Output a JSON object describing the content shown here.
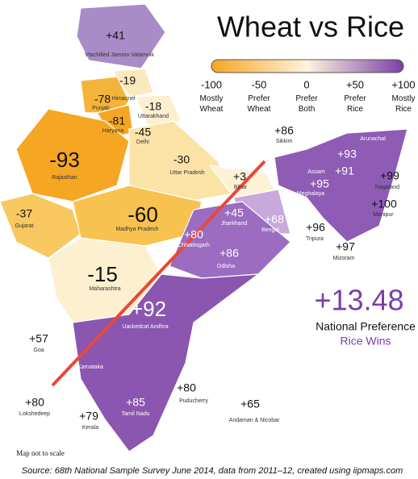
{
  "title": "Wheat vs Rice",
  "legend": {
    "ticks": [
      "-100",
      "-50",
      "0",
      "+50",
      "+100"
    ],
    "labels": [
      "Mostly Wheat",
      "Prefer Wheat",
      "Prefer Both",
      "Prefer Rice",
      "Mostly Rice"
    ]
  },
  "regions": [
    {
      "value": "+41",
      "name": "Vtachilled Jammo Vatamnik"
    },
    {
      "value": "-19",
      "name": "Himacnel"
    },
    {
      "value": "-78",
      "name": "Punjab"
    },
    {
      "value": "-81",
      "name": "Haryana"
    },
    {
      "value": "-18",
      "name": "Uttarakhand"
    },
    {
      "value": "-45",
      "name": "Delhi"
    },
    {
      "value": "-93",
      "name": "Rajasthan"
    },
    {
      "value": "-30",
      "name": "Uttar Pradesh"
    },
    {
      "value": "+3",
      "name": "Bihar"
    },
    {
      "value": "+86",
      "name": "Sikkim"
    },
    {
      "value": "+93",
      "name": "Arunachal"
    },
    {
      "value": "+91",
      "name": "Assam"
    },
    {
      "value": "+95",
      "name": "Meghalaya"
    },
    {
      "value": "+99",
      "name": "Nagaland"
    },
    {
      "value": "+100",
      "name": "Manipur"
    },
    {
      "value": "+96",
      "name": "Tripura"
    },
    {
      "value": "+97",
      "name": "Mizoram"
    },
    {
      "value": "+45",
      "name": "Jharkhand"
    },
    {
      "value": "+68",
      "name": "Bengal"
    },
    {
      "value": "-37",
      "name": "Gujarat"
    },
    {
      "value": "-60",
      "name": "Madhya Pradesh"
    },
    {
      "value": "+80",
      "name": "Chhattisgarh"
    },
    {
      "value": "+86",
      "name": "Odisha"
    },
    {
      "value": "-15",
      "name": "Maharashtra"
    },
    {
      "value": "+57",
      "name": "Goa"
    },
    {
      "value": "+92",
      "name": "Uackedcat Andhra"
    },
    {
      "value": "+85",
      "name": "Tamil Nadu"
    },
    {
      "value": "+80",
      "name": "Puducherry"
    },
    {
      "value": "+80",
      "name": "Lokshedeep"
    },
    {
      "value": "+79",
      "name": "Kerala"
    },
    {
      "value": "+65",
      "name": "Andaman & Nicobar"
    }
  ],
  "other_labels": [
    "Karnataka"
  ],
  "national": {
    "value": "+13.48",
    "label": "National Preference",
    "verdict": "Rice Wins"
  },
  "note": "Map not to scale",
  "source": "Source: 68th National Sample Survey June 2014, data from 2011–12, created using iipmaps.com"
}
